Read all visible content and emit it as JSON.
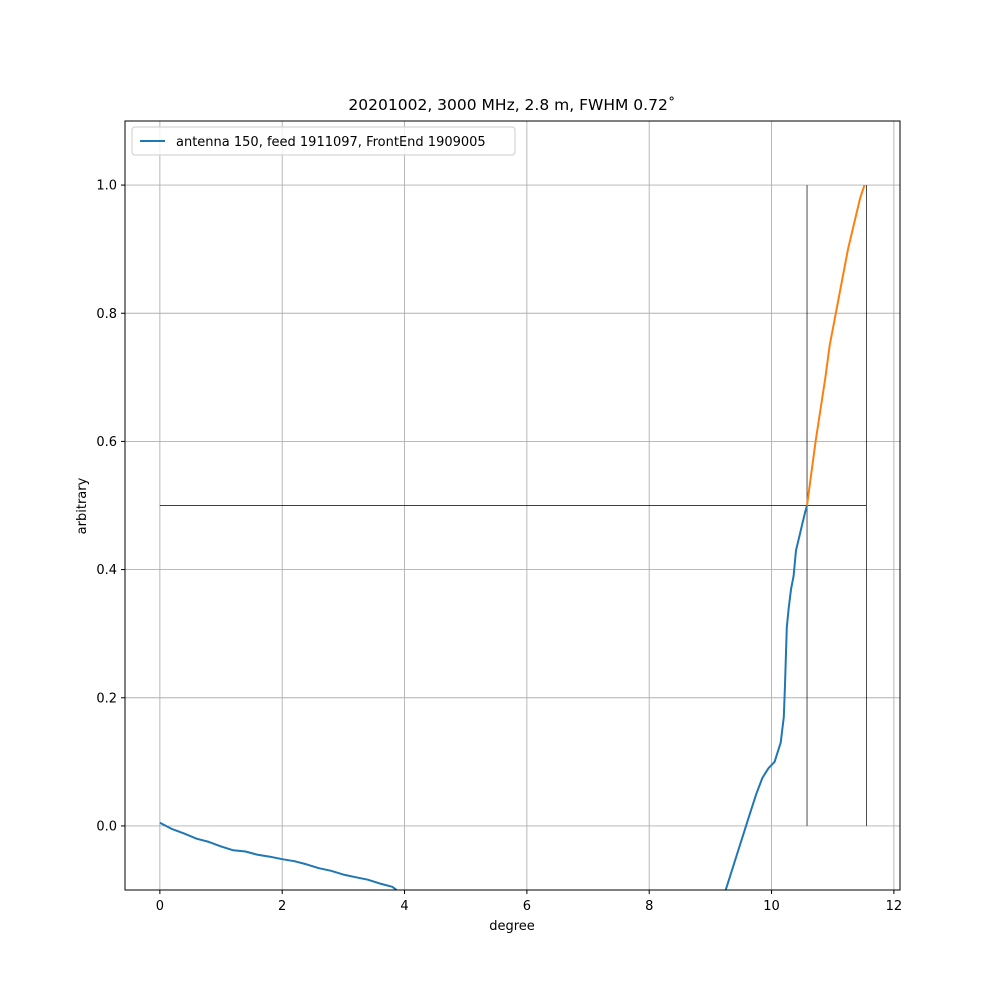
{
  "chart_data": {
    "type": "line",
    "title": "20201002, 3000 MHz, 2.8 m, FWHM 0.72˚",
    "xlabel": "degree",
    "ylabel": "arbitrary",
    "xlim": [
      -0.57,
      12.1
    ],
    "ylim": [
      -0.1,
      1.1
    ],
    "xticks": [
      0,
      2,
      4,
      6,
      8,
      10,
      12
    ],
    "yticks": [
      0.0,
      0.2,
      0.4,
      0.6,
      0.8,
      1.0
    ],
    "xtick_labels": [
      "0",
      "2",
      "4",
      "6",
      "8",
      "10",
      "12"
    ],
    "ytick_labels": [
      "0.0",
      "0.2",
      "0.4",
      "0.6",
      "0.8",
      "1.0"
    ],
    "grid": true,
    "legend_position": "top-left",
    "colors": {
      "series1": "#1f77b4",
      "series2": "#ff7f0e",
      "reference": "#000000",
      "grid": "#b0b0b0"
    },
    "series": [
      {
        "name": "antenna 150, feed 1911097, FrontEnd 1909005",
        "color": "#1f77b4",
        "x": [
          0.0,
          0.2,
          0.4,
          0.6,
          0.8,
          1.0,
          1.2,
          1.4,
          1.6,
          1.8,
          2.0,
          2.2,
          2.4,
          2.6,
          2.8,
          3.0,
          3.2,
          3.4,
          3.6,
          3.8,
          3.87,
          null,
          9.25,
          9.35,
          9.45,
          9.55,
          9.65,
          9.75,
          9.85,
          9.95,
          10.05,
          10.15,
          10.2,
          10.22,
          10.25,
          10.28,
          10.32,
          10.36,
          10.4,
          10.45,
          10.5,
          10.55,
          10.58
        ],
        "y": [
          0.005,
          -0.005,
          -0.012,
          -0.02,
          -0.025,
          -0.032,
          -0.038,
          -0.04,
          -0.045,
          -0.048,
          -0.052,
          -0.055,
          -0.06,
          -0.066,
          -0.07,
          -0.076,
          -0.08,
          -0.084,
          -0.09,
          -0.095,
          -0.1,
          null,
          -0.1,
          -0.07,
          -0.04,
          -0.01,
          0.02,
          0.05,
          0.075,
          0.09,
          0.1,
          0.13,
          0.17,
          0.22,
          0.31,
          0.34,
          0.37,
          0.39,
          0.43,
          0.45,
          0.47,
          0.49,
          0.5
        ]
      },
      {
        "name": "",
        "color": "#ff7f0e",
        "x": [
          10.58,
          10.65,
          10.72,
          10.8,
          10.88,
          10.95,
          11.05,
          11.15,
          11.25,
          11.35,
          11.45,
          11.52
        ],
        "y": [
          0.5,
          0.55,
          0.6,
          0.65,
          0.7,
          0.75,
          0.8,
          0.85,
          0.9,
          0.94,
          0.98,
          1.0
        ]
      }
    ],
    "reference_lines": [
      {
        "orientation": "horizontal",
        "y": 0.5,
        "x_from": 0.0,
        "x_to": 11.55
      },
      {
        "orientation": "vertical",
        "x": 10.58,
        "y_from": 0.0,
        "y_to": 1.0
      },
      {
        "orientation": "vertical",
        "x": 11.55,
        "y_from": 0.0,
        "y_to": 1.0
      }
    ]
  }
}
